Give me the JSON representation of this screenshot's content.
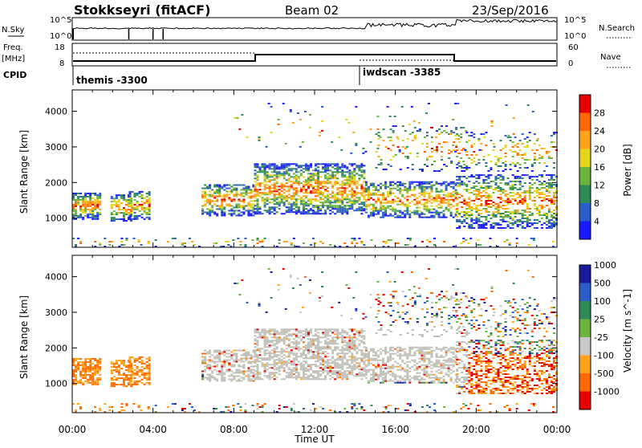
{
  "header": {
    "station": "Stokkseyri (fitACF)",
    "beam": "Beam 02",
    "date": "23/Sep/2016"
  },
  "colors": {
    "power_scale": [
      "#1a1aff",
      "#2b5cc8",
      "#2e8b57",
      "#6db33f",
      "#e5d51a",
      "#ffa31a",
      "#ff6a00",
      "#e60000"
    ],
    "velocity_scale": [
      "#1a1a9e",
      "#2b5cc8",
      "#2e8b57",
      "#6db33f",
      "#c8c8c8",
      "#ffa31a",
      "#ff6a00",
      "#e60000"
    ],
    "ground_scatter": "#c0c0b8"
  },
  "panels": {
    "nsky": {
      "label": "N.Sky",
      "right_label": "N.Search",
      "left_ticks": [
        "10^5",
        "10^0"
      ],
      "right_ticks": [
        "10^5",
        "10^0"
      ]
    },
    "freq": {
      "label": "Freq.",
      "unit": "[MHz]",
      "left_ticks": [
        "18",
        "8"
      ],
      "right_label": "Nave",
      "right_ticks": [
        "60",
        "0"
      ]
    },
    "cpid": {
      "label": "CPID",
      "modes": [
        {
          "name": "themis -3300",
          "start_hour": 0
        },
        {
          "name": "iwdscan -3385",
          "start_hour": 14.5
        }
      ]
    }
  },
  "chart_data": [
    {
      "type": "heatmap",
      "title": "",
      "ylabel": "Slant Range [km]",
      "ylim": [
        180,
        4600
      ],
      "yticks": [
        1000,
        2000,
        3000,
        4000
      ],
      "xlim": [
        0,
        24
      ],
      "xticks": [
        "00:00",
        "04:00",
        "08:00",
        "12:00",
        "16:00",
        "20:00",
        "00:00"
      ],
      "colorbar": {
        "label": "Power [dB]",
        "ticks": [
          4,
          8,
          12,
          16,
          20,
          24,
          28
        ],
        "range": [
          0,
          30
        ]
      }
    },
    {
      "type": "heatmap",
      "title": "",
      "ylabel": "Slant Range [km]",
      "xlabel": "Time UT",
      "ylim": [
        180,
        4600
      ],
      "yticks": [
        1000,
        2000,
        3000,
        4000
      ],
      "xlim": [
        0,
        24
      ],
      "xticks": [
        "00:00",
        "04:00",
        "08:00",
        "12:00",
        "16:00",
        "20:00",
        "00:00"
      ],
      "colorbar": {
        "label": "Velocity [m s^-1]",
        "ticks": [
          1000,
          500,
          100,
          25,
          -25,
          -100,
          -500,
          -1000
        ]
      }
    }
  ]
}
